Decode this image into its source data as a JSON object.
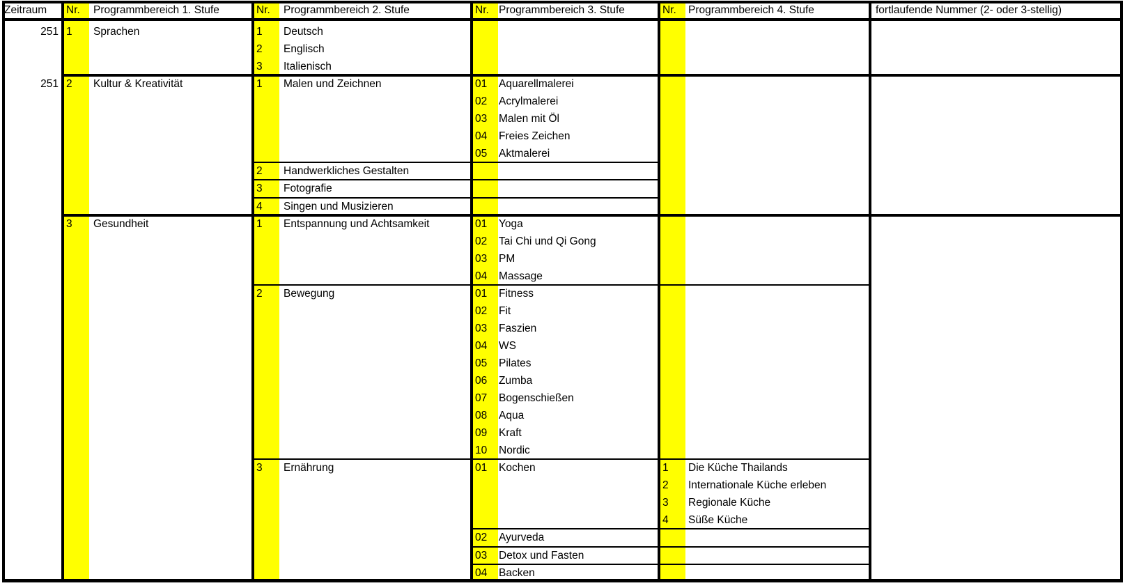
{
  "header": {
    "zeitraum": "Zeitraum",
    "nr": "Nr.",
    "pb1": "Programmbereich 1. Stufe",
    "pb2": "Programmbereich 2. Stufe",
    "pb3": "Programmbereich 3. Stufe",
    "pb4": "Programmbereich 4. Stufe",
    "fortlaufend": "fortlaufende Nummer (2- oder 3-stellig)"
  },
  "colors": {
    "highlight": "#ffff00",
    "border": "#000000",
    "background": "#ffffff",
    "text": "#000000"
  },
  "sections": [
    {
      "zeitraum": "251",
      "nr": "1",
      "label": "Sprachen",
      "level2": [
        {
          "nr": "1",
          "label": "Deutsch"
        },
        {
          "nr": "2",
          "label": "Englisch"
        },
        {
          "nr": "3",
          "label": "Italienisch"
        }
      ]
    },
    {
      "zeitraum": "251",
      "nr": "2",
      "label": "Kultur & Kreativität",
      "level2": [
        {
          "nr": "1",
          "label": "Malen und Zeichnen",
          "level3": [
            {
              "nr": "01",
              "label": "Aquarellmalerei"
            },
            {
              "nr": "02",
              "label": "Acrylmalerei"
            },
            {
              "nr": "03",
              "label": "Malen mit Öl"
            },
            {
              "nr": "04",
              "label": "Freies Zeichen"
            },
            {
              "nr": "05",
              "label": "Aktmalerei"
            }
          ]
        },
        {
          "nr": "2",
          "label": "Handwerkliches Gestalten"
        },
        {
          "nr": "3",
          "label": "Fotografie"
        },
        {
          "nr": "4",
          "label": "Singen und Musizieren"
        }
      ]
    },
    {
      "zeitraum": "",
      "nr": "3",
      "label": "Gesundheit",
      "level2": [
        {
          "nr": "1",
          "label": "Entspannung und Achtsamkeit",
          "level3": [
            {
              "nr": "01",
              "label": "Yoga"
            },
            {
              "nr": "02",
              "label": "Tai Chi und Qi Gong"
            },
            {
              "nr": "03",
              "label": "PM"
            },
            {
              "nr": "04",
              "label": "Massage"
            }
          ]
        },
        {
          "nr": "2",
          "label": "Bewegung",
          "level3": [
            {
              "nr": "01",
              "label": "Fitness"
            },
            {
              "nr": "02",
              "label": "Fit"
            },
            {
              "nr": "03",
              "label": "Faszien"
            },
            {
              "nr": "04",
              "label": "WS"
            },
            {
              "nr": "05",
              "label": "Pilates"
            },
            {
              "nr": "06",
              "label": "Zumba"
            },
            {
              "nr": "07",
              "label": "Bogenschießen"
            },
            {
              "nr": "08",
              "label": "Aqua"
            },
            {
              "nr": "09",
              "label": "Kraft"
            },
            {
              "nr": "10",
              "label": "Nordic"
            }
          ]
        },
        {
          "nr": "3",
          "label": "Ernährung",
          "level3": [
            {
              "nr": "01",
              "label": "Kochen",
              "level4": [
                {
                  "nr": "1",
                  "label": "Die Küche Thailands"
                },
                {
                  "nr": "2",
                  "label": "Internationale Küche erleben"
                },
                {
                  "nr": "3",
                  "label": "Regionale Küche"
                },
                {
                  "nr": "4",
                  "label": "Süße Küche"
                }
              ]
            },
            {
              "nr": "02",
              "label": "Ayurveda"
            },
            {
              "nr": "03",
              "label": "Detox und Fasten"
            },
            {
              "nr": "04",
              "label": "Backen"
            }
          ]
        }
      ]
    }
  ]
}
